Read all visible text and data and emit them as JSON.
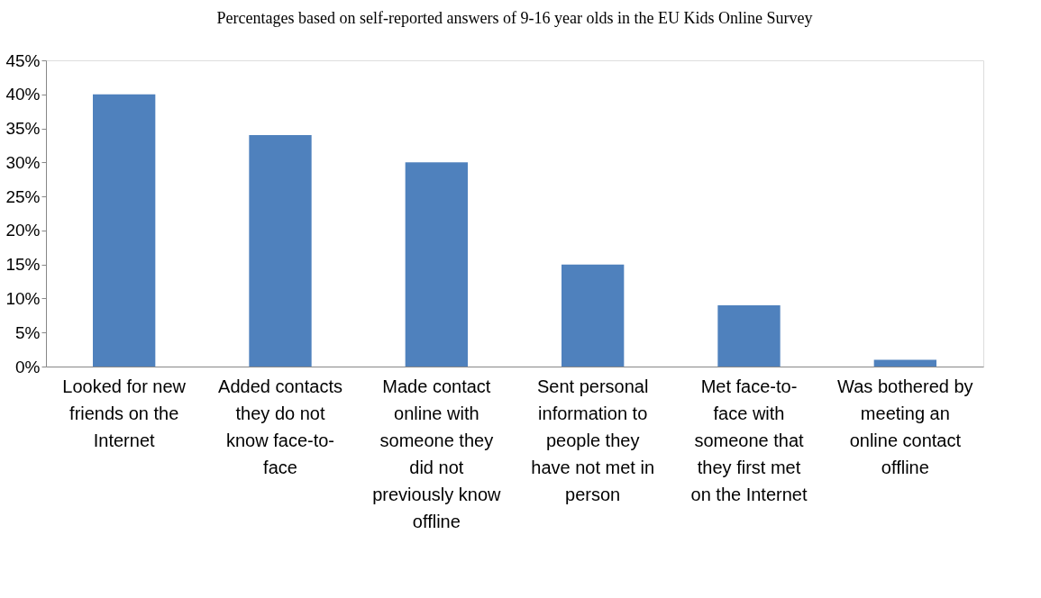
{
  "chart_data": {
    "type": "bar",
    "title": "Percentages based on self-reported answers of 9-16 year olds in the EU Kids Online Survey",
    "categories": [
      "Looked for new friends on the Internet",
      "Added contacts they do not know face-to-face",
      "Made contact online with someone they did not previously know offline",
      "Sent personal information to people they have not met in person",
      "Met face-to-face with someone that they first met on the Internet",
      "Was bothered by meeting an online contact offline"
    ],
    "values": [
      40,
      34,
      30,
      15,
      9,
      1
    ],
    "color": "#4f81bd",
    "ylim": [
      0,
      45
    ],
    "yticks": [
      {
        "value": 0,
        "label": "0%"
      },
      {
        "value": 5,
        "label": "5%"
      },
      {
        "value": 10,
        "label": "10%"
      },
      {
        "value": 15,
        "label": "15%"
      },
      {
        "value": 20,
        "label": "20%"
      },
      {
        "value": 25,
        "label": "25%"
      },
      {
        "value": 30,
        "label": "30%"
      },
      {
        "value": 35,
        "label": "35%"
      },
      {
        "value": 40,
        "label": "40%"
      },
      {
        "value": 45,
        "label": "45%"
      }
    ],
    "grid": false
  }
}
